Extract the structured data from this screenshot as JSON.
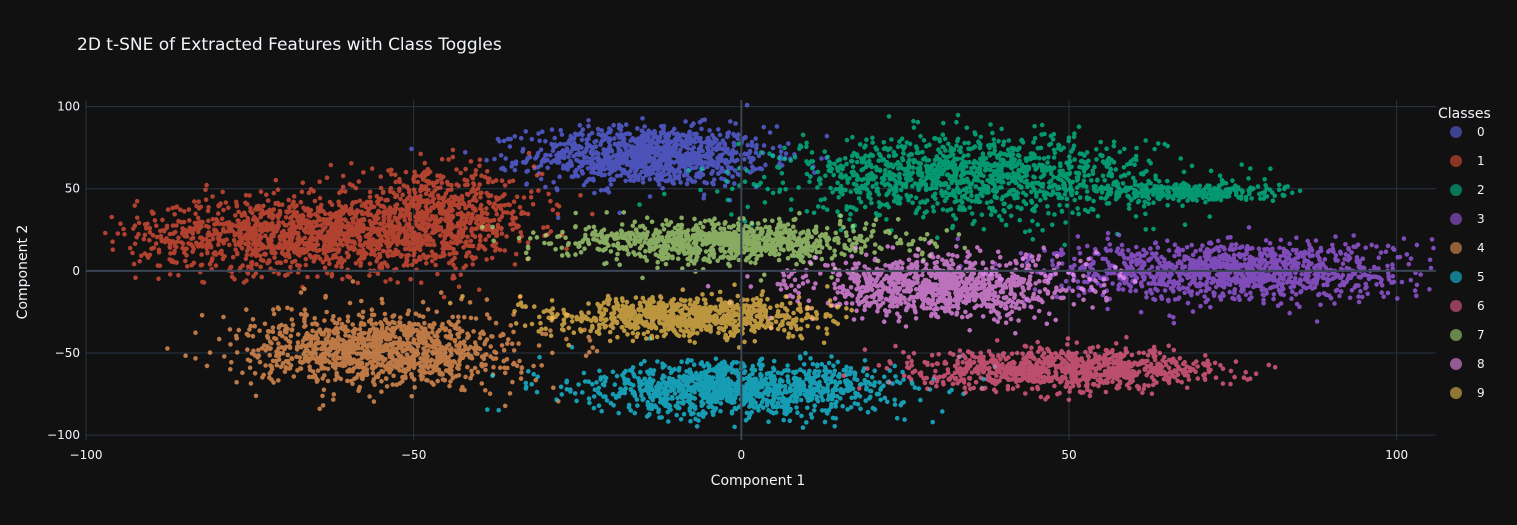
{
  "chart_data": {
    "type": "scatter",
    "title": "2D t-SNE of Extracted Features with Class Toggles",
    "xlabel": "Component 1",
    "ylabel": "Component 2",
    "xlim": [
      -100,
      106
    ],
    "ylim": [
      -103,
      104
    ],
    "x_ticks": [
      -100,
      -50,
      0,
      50,
      100
    ],
    "y_ticks": [
      -100,
      -50,
      0,
      50,
      100
    ],
    "x_tick_labels": [
      "−100",
      "−50",
      "0",
      "50",
      "100"
    ],
    "y_tick_labels": [
      "−100",
      "−50",
      "0",
      "50",
      "100"
    ],
    "grid": true,
    "legend": {
      "title": "Classes",
      "placement": "right"
    },
    "series": [
      {
        "name": "0",
        "color": "#636efa",
        "clusters": [
          {
            "cx": -14,
            "cy": 70,
            "sx": 9,
            "sy": 9,
            "n": 1100
          }
        ]
      },
      {
        "name": "1",
        "color": "#ef553b",
        "clusters": [
          {
            "cx": -68,
            "cy": 22,
            "sx": 12,
            "sy": 11,
            "n": 1300
          },
          {
            "cx": -47,
            "cy": 32,
            "sx": 8,
            "sy": 14,
            "n": 800
          }
        ]
      },
      {
        "name": "2",
        "color": "#00cc96",
        "clusters": [
          {
            "cx": 35,
            "cy": 58,
            "sx": 14,
            "sy": 12,
            "n": 1300
          },
          {
            "cx": 68,
            "cy": 48,
            "sx": 7,
            "sy": 3,
            "n": 300
          }
        ]
      },
      {
        "name": "3",
        "color": "#ab63fa",
        "clusters": [
          {
            "cx": 75,
            "cy": 0,
            "sx": 13,
            "sy": 9,
            "n": 1200
          }
        ]
      },
      {
        "name": "4",
        "color": "#ffa15a",
        "clusters": [
          {
            "cx": -55,
            "cy": -48,
            "sx": 10,
            "sy": 11,
            "n": 1200
          }
        ]
      },
      {
        "name": "5",
        "color": "#19d3f3",
        "clusters": [
          {
            "cx": 0,
            "cy": -72,
            "sx": 12,
            "sy": 8,
            "n": 1200
          }
        ]
      },
      {
        "name": "6",
        "color": "#ff6692",
        "clusters": [
          {
            "cx": 50,
            "cy": -60,
            "sx": 11,
            "sy": 6,
            "n": 1000
          }
        ]
      },
      {
        "name": "7",
        "color": "#b6e880",
        "clusters": [
          {
            "cx": -2,
            "cy": 18,
            "sx": 12,
            "sy": 6,
            "n": 1000
          }
        ]
      },
      {
        "name": "8",
        "color": "#ff97ff",
        "clusters": [
          {
            "cx": 30,
            "cy": -10,
            "sx": 10,
            "sy": 9,
            "n": 1000
          }
        ]
      },
      {
        "name": "9",
        "color": "#fecb52",
        "clusters": [
          {
            "cx": -8,
            "cy": -28,
            "sx": 10,
            "sy": 6,
            "n": 900
          }
        ]
      }
    ]
  }
}
